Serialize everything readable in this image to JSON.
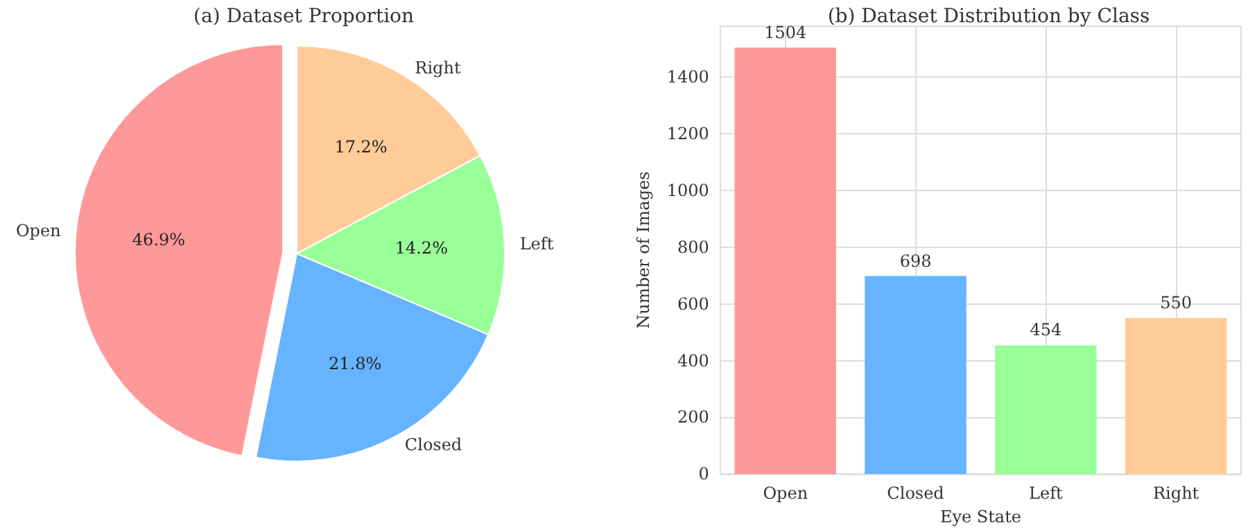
{
  "chart_data": [
    {
      "type": "pie",
      "title": "(a) Dataset Proportion",
      "categories": [
        "Open",
        "Closed",
        "Left",
        "Right"
      ],
      "values": [
        46.9,
        21.8,
        14.2,
        17.2
      ],
      "colors": [
        "#ff9999",
        "#66b3ff",
        "#99ff99",
        "#ffcc99"
      ],
      "value_labels": [
        "46.9%",
        "21.8%",
        "14.2%",
        "17.2%"
      ],
      "legend": false
    },
    {
      "type": "bar",
      "title": "(b) Dataset Distribution by Class",
      "xlabel": "Eye State",
      "ylabel": "Number of Images",
      "categories": [
        "Open",
        "Closed",
        "Left",
        "Right"
      ],
      "values": [
        1504,
        698,
        454,
        550
      ],
      "colors": [
        "#ff9999",
        "#66b3ff",
        "#99ff99",
        "#ffcc99"
      ],
      "ylim": [
        0,
        1579
      ],
      "yticks": [
        0,
        200,
        400,
        600,
        800,
        1000,
        1200,
        1400
      ],
      "grid": true,
      "data_labels": true,
      "legend": false
    }
  ]
}
